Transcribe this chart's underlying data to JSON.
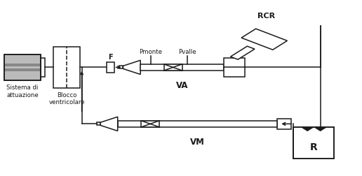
{
  "bg_color": "#ffffff",
  "lc": "#1a1a1a",
  "figsize": [
    5.16,
    2.53
  ],
  "dpi": 100,
  "ylim": [
    0,
    1
  ],
  "xlim": [
    0,
    1
  ]
}
